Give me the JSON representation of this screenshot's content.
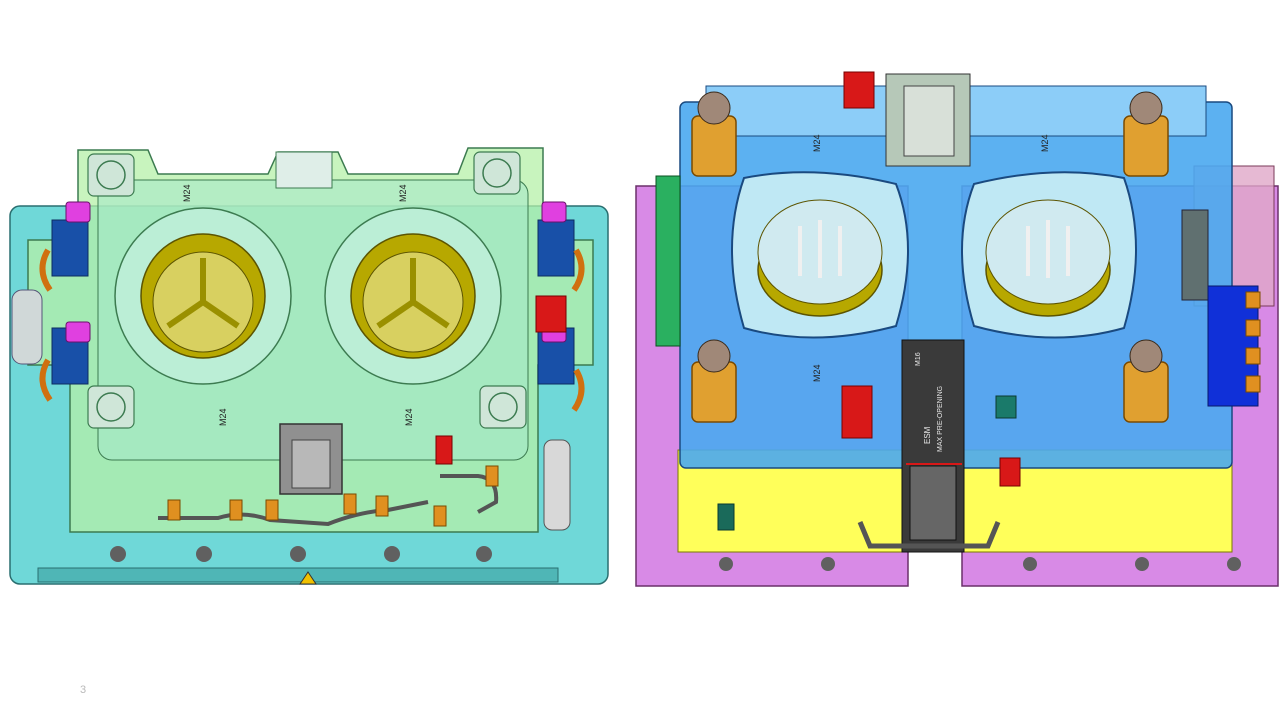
{
  "slide": {
    "page_number": "3"
  },
  "left_view": {
    "thread_labels": [
      "M24",
      "M24",
      "M24",
      "M24"
    ]
  },
  "right_view": {
    "thread_labels": [
      "M24",
      "M24",
      "M24",
      "M16"
    ],
    "plate_labels": [
      "ESM",
      "MAX PRE-OPENING"
    ]
  },
  "colors": {
    "mold_base_cyan": "#6fd8d8",
    "cavity_plate_green": "#b6f0a8",
    "core_plate_blue": "#4aa8f0",
    "clamp_plate_magenta": "#d88ae6",
    "yellow_plate": "#ffff5a",
    "cavity_gold": "#b7a800",
    "cylinder_orange": "#e0a030",
    "accent_red": "#d81818",
    "dark_grey": "#444444"
  }
}
